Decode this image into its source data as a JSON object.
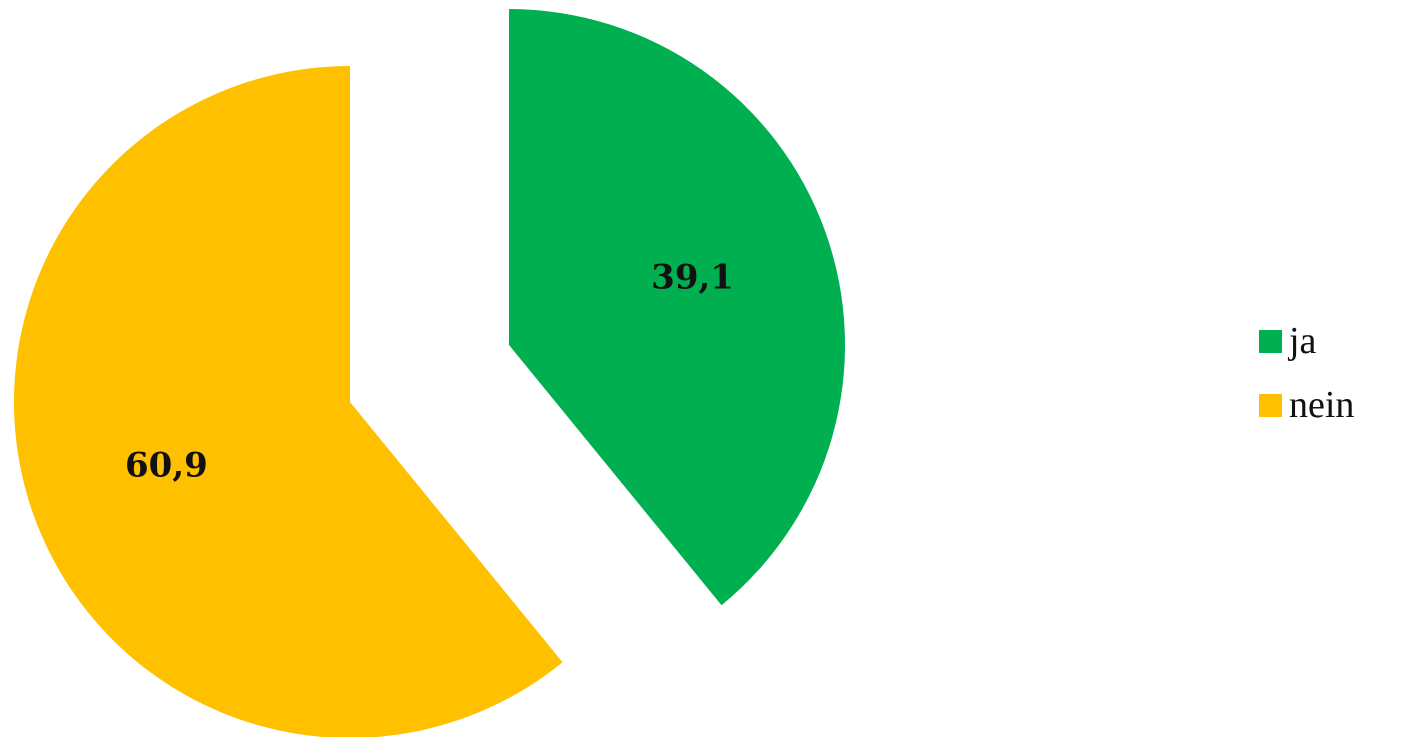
{
  "chart_data": {
    "type": "pie",
    "categories": [
      "ja",
      "nein"
    ],
    "values": [
      39.1,
      60.9
    ],
    "data_labels": [
      "39,1",
      "60,9"
    ],
    "colors": [
      "#00B050",
      "#FFC000"
    ],
    "exploded": true,
    "legend_position": "right",
    "start_angle_deg": 0,
    "direction": "clockwise"
  },
  "legend": {
    "items": [
      {
        "label": "ja",
        "color": "#00B050"
      },
      {
        "label": "nein",
        "color": "#FFC000"
      }
    ]
  }
}
